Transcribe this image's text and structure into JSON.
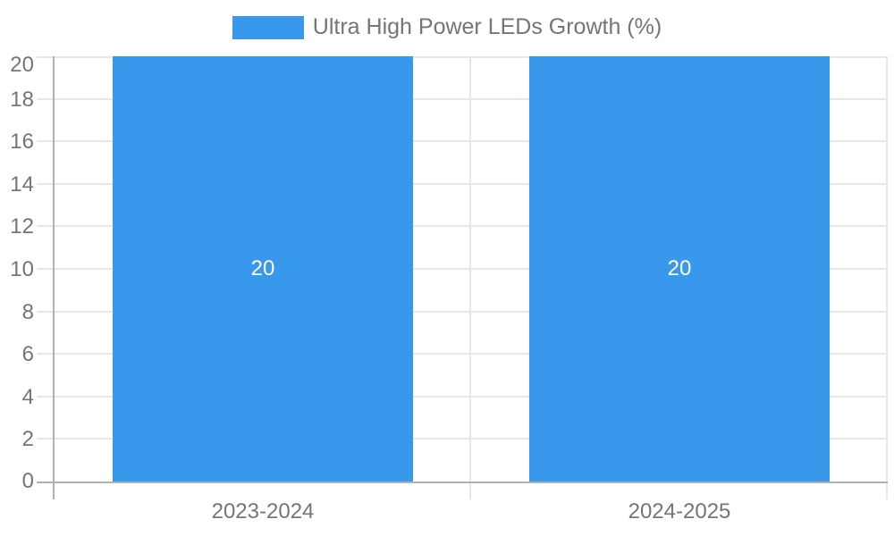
{
  "chart_data": {
    "type": "bar",
    "categories": [
      "2023-2024",
      "2024-2025"
    ],
    "series": [
      {
        "name": "Ultra High Power LEDs Growth (%)",
        "values": [
          20,
          20
        ]
      }
    ],
    "bar_value_labels": [
      "20",
      "20"
    ],
    "title": "",
    "xlabel": "",
    "ylabel": "",
    "ylim": [
      0,
      20
    ],
    "ytick_step": 2,
    "ytick_labels": [
      "0",
      "2",
      "4",
      "6",
      "8",
      "10",
      "12",
      "14",
      "16",
      "18",
      "20"
    ],
    "legend_position": "top-center",
    "grid": true,
    "bar_percentage_of_category": 0.72,
    "colors": {
      "bar": "#3898ec",
      "value_label": "#ffffff",
      "grid": "#e7e7e7",
      "axis": "#b1b1b1",
      "tick_label": "#757575",
      "background": "#ffffff"
    }
  }
}
